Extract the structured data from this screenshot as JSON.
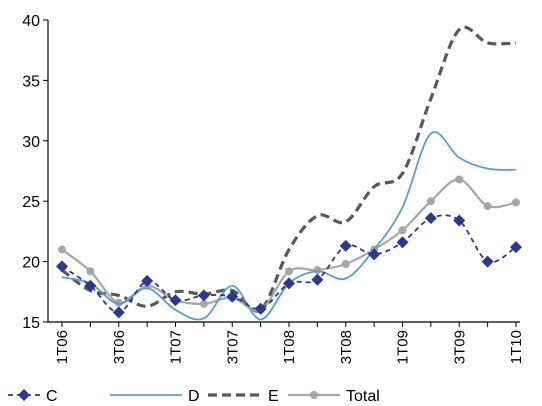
{
  "chart_data": {
    "type": "line",
    "x": [
      "1T06",
      "2T06",
      "3T06",
      "4T06",
      "1T07",
      "2T07",
      "3T07",
      "4T07",
      "1T08",
      "2T08",
      "3T08",
      "4T08",
      "1T09",
      "2T09",
      "3T09",
      "4T09",
      "1T10"
    ],
    "x_tick_labels": [
      "1T06",
      "3T06",
      "1T07",
      "3T07",
      "1T08",
      "3T08",
      "1T09",
      "3T09",
      "1T10"
    ],
    "ylim": [
      15,
      40
    ],
    "y_ticks": [
      15,
      20,
      25,
      30,
      35,
      40
    ],
    "series": [
      {
        "name": "C",
        "color": "#2b3a8f",
        "style": "dashed-diamond",
        "values": [
          19.6,
          18.0,
          15.8,
          18.4,
          16.8,
          17.2,
          17.1,
          16.1,
          18.2,
          18.5,
          21.3,
          20.6,
          21.6,
          23.6,
          23.4,
          20.0,
          21.2
        ]
      },
      {
        "name": "D",
        "color": "#5b9bd5",
        "style": "solid",
        "values": [
          18.7,
          18.2,
          16.5,
          17.8,
          16.0,
          15.3,
          18.0,
          15.2,
          18.2,
          19.2,
          18.6,
          21.0,
          24.5,
          30.6,
          28.6,
          27.7,
          27.6
        ]
      },
      {
        "name": "E",
        "color": "#595959",
        "style": "dashed",
        "values": [
          19.3,
          17.6,
          17.2,
          16.3,
          17.5,
          17.3,
          17.6,
          16.0,
          21.0,
          23.8,
          23.3,
          26.2,
          27.3,
          33.5,
          39.2,
          38.1,
          38.1
        ]
      },
      {
        "name": "Total",
        "color": "#a6a6a6",
        "style": "solid-circle",
        "values": [
          21.0,
          19.2,
          16.6,
          18.0,
          16.8,
          16.5,
          17.0,
          16.0,
          19.2,
          19.3,
          19.8,
          21.0,
          22.6,
          25.0,
          26.8,
          24.6,
          24.9
        ]
      }
    ],
    "grid": false,
    "legend_position": "bottom-left"
  }
}
